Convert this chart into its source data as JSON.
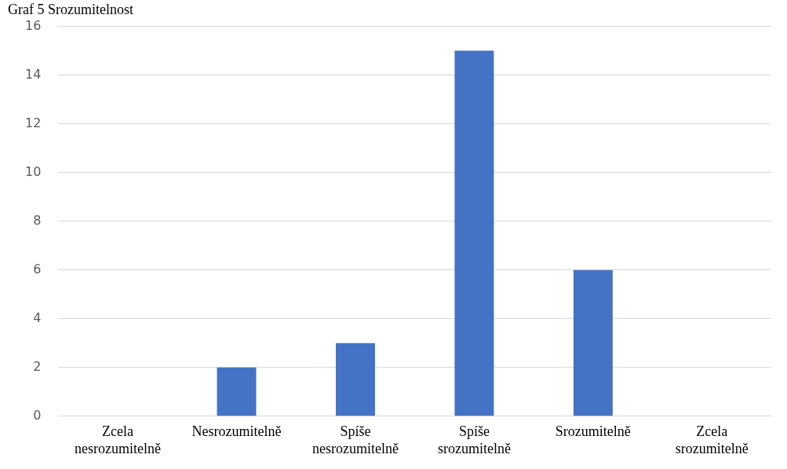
{
  "chart_data": {
    "type": "bar",
    "title": "Graf 5 Srozumitelnost",
    "categories": [
      "Zcela nesrozumitelně",
      "Nesrozumitelně",
      "Spíše nesrozumitelně",
      "Spíše srozumitelně",
      "Srozumitelně",
      "Zcela srozumitelně"
    ],
    "values": [
      0,
      2,
      3,
      15,
      6,
      0
    ],
    "color": "#4472c4",
    "ylim": [
      0,
      16
    ],
    "yticks": [
      0,
      2,
      4,
      6,
      8,
      10,
      12,
      14,
      16
    ],
    "grid": "y",
    "legend": false
  }
}
